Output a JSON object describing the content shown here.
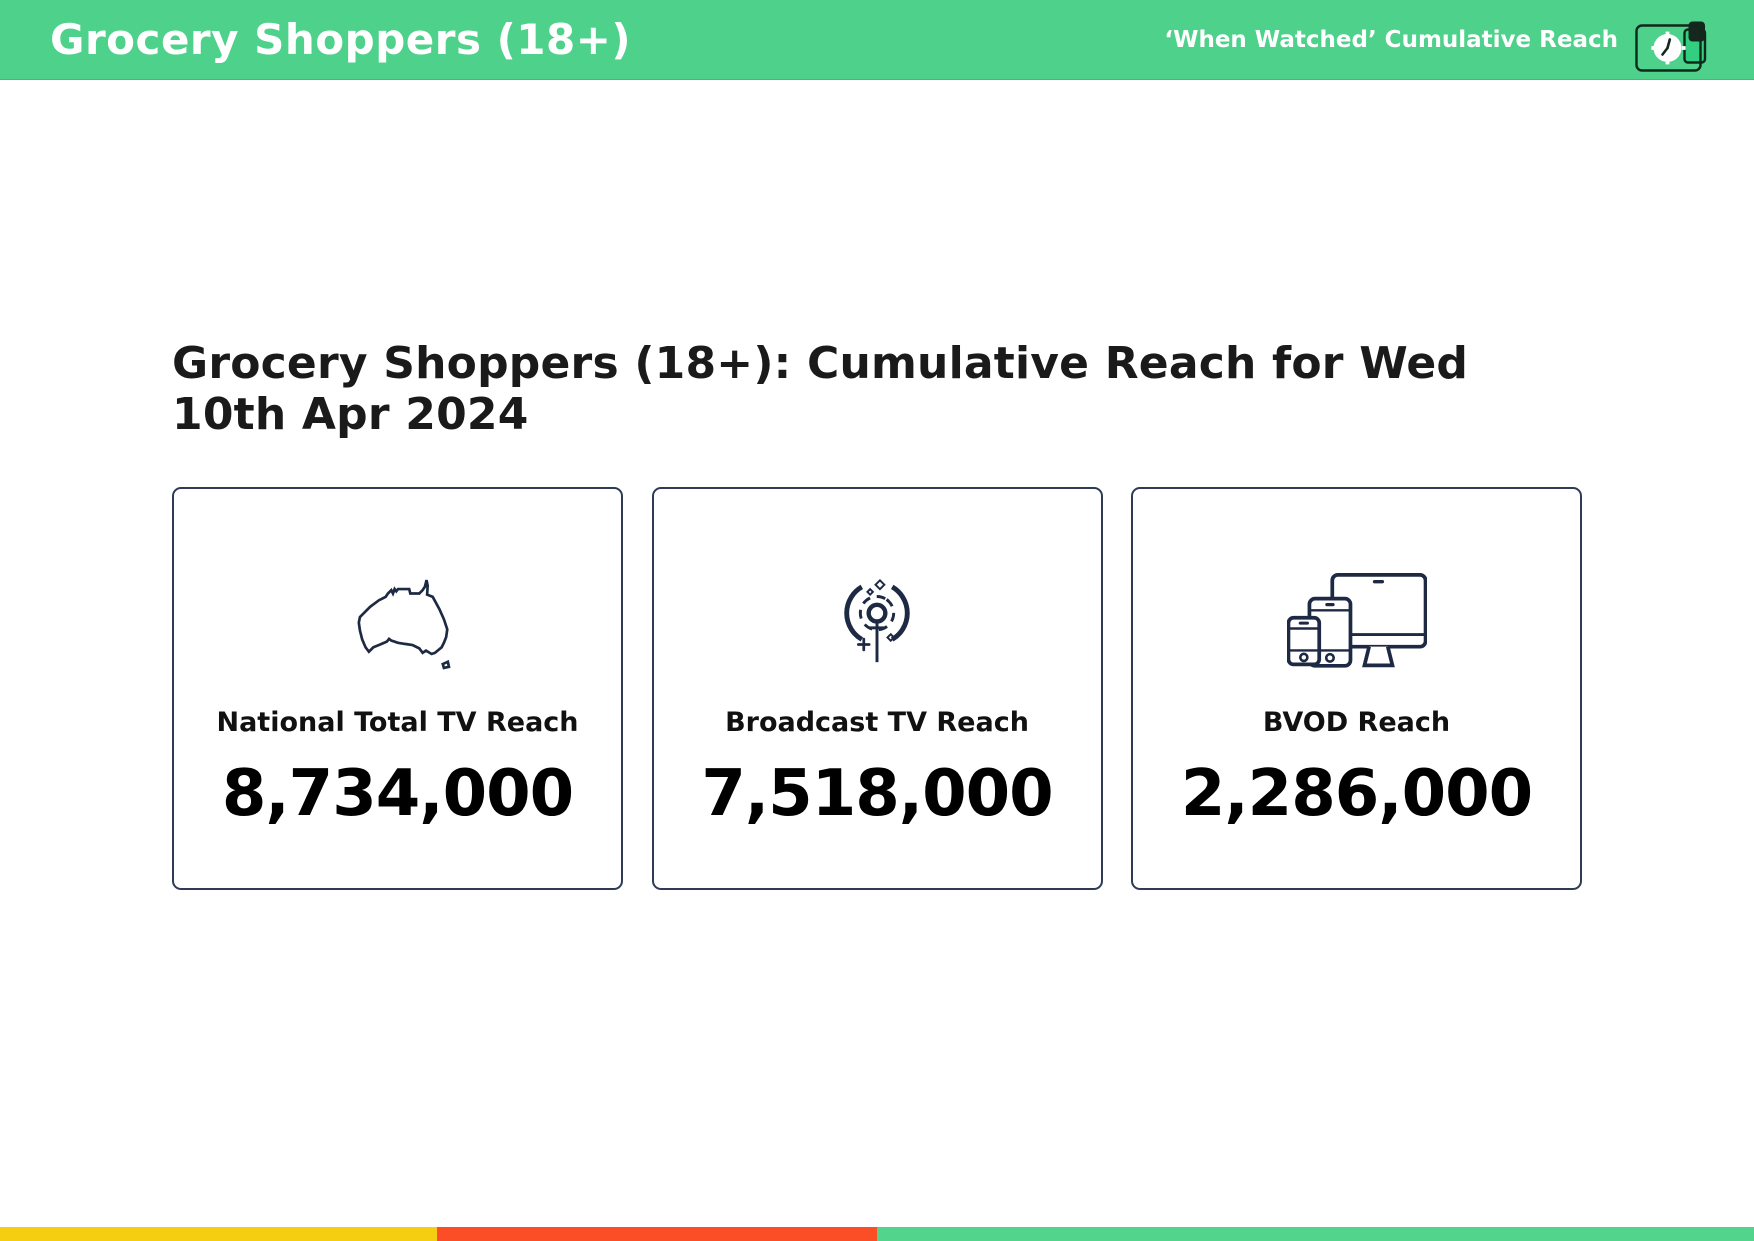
{
  "header": {
    "title": "Grocery Shoppers (18+)",
    "subtitle": "‘When Watched’ Cumulative Reach",
    "logo_icons": [
      "clock-panel-icon",
      "phone-icon"
    ],
    "bg_color": "#4ED18A",
    "text_color": "#ffffff"
  },
  "main": {
    "heading": "Grocery Shoppers (18+): Cumulative Reach for Wed 10th Apr 2024",
    "cards": [
      {
        "icon": "australia-map-icon",
        "label": "National Total TV Reach",
        "value": "8,734,000"
      },
      {
        "icon": "broadcast-antenna-icon",
        "label": "Broadcast TV Reach",
        "value": "7,518,000"
      },
      {
        "icon": "devices-icon",
        "label": "BVOD Reach",
        "value": "2,286,000"
      }
    ]
  },
  "footer": {
    "stripe_segments": [
      {
        "color": "#F5CD11",
        "width_pct": 24.9
      },
      {
        "color": "#FB4E26",
        "width_pct": 25.1
      },
      {
        "color": "#52D48C",
        "width_pct": 50.0
      }
    ]
  },
  "colors": {
    "icon_navy": "#1E2A44",
    "card_border": "#2F3B54",
    "header_green": "#4ED18A",
    "heading_text": "#1a1a1a"
  }
}
